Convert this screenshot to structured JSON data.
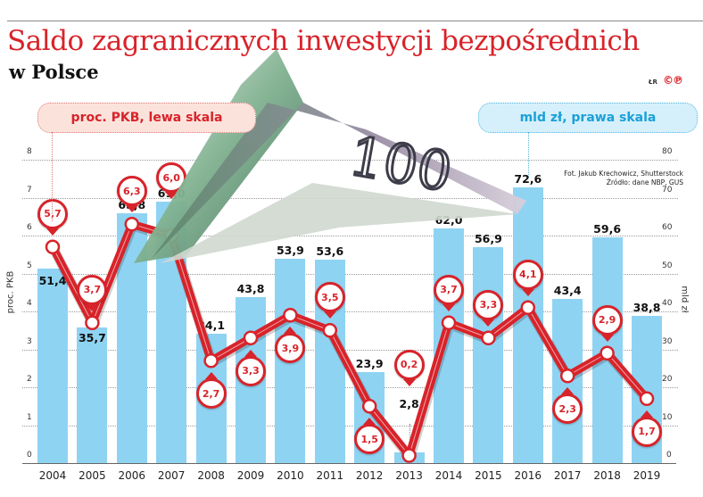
{
  "header": {
    "title": "Saldo zagranicznych inwestycji bezpośrednich",
    "subtitle": "w Polsce",
    "author_mark": "ŁR",
    "logo": "©℗"
  },
  "legend": {
    "left_pill": "proc. PKB, lewa skala",
    "right_pill": "mld zł, prawa skala"
  },
  "notes": {
    "photo": "Fot. Jakub Krechowicz, Shutterstock",
    "source": "Źródło: dane NBP, GUS"
  },
  "axes": {
    "left_title": "proc. PKB",
    "right_title": "mld zł",
    "left_ticks": [
      "0",
      "1",
      "2",
      "3",
      "4",
      "5",
      "6",
      "7",
      "8"
    ],
    "right_ticks": [
      "0",
      "10",
      "20",
      "30",
      "40",
      "50",
      "60",
      "70",
      "80"
    ]
  },
  "colors": {
    "bar": "#8fd3f2",
    "line": "#d8232a",
    "title": "#d8232a",
    "right_accent": "#1aa0d8"
  },
  "chart_data": {
    "type": "bar+line",
    "title": "Saldo zagranicznych inwestycji bezpośrednich w Polsce",
    "categories": [
      "2004",
      "2005",
      "2006",
      "2007",
      "2008",
      "2009",
      "2010",
      "2011",
      "2012",
      "2013",
      "2014",
      "2015",
      "2016",
      "2017",
      "2018",
      "2019"
    ],
    "series": [
      {
        "name": "mld zł, prawa skala",
        "type": "bar",
        "axis": "right",
        "values": [
          51.4,
          35.7,
          65.8,
          69.0,
          34.1,
          43.8,
          53.9,
          53.6,
          23.9,
          2.8,
          62.0,
          56.9,
          72.6,
          43.4,
          59.6,
          38.8
        ],
        "labels": [
          "51,4",
          "35,7",
          "65,8",
          "69,0",
          "34,1",
          "43,8",
          "53,9",
          "53,6",
          "23,9",
          "2,8",
          "62,0",
          "56,9",
          "72,6",
          "43,4",
          "59,6",
          "38,8"
        ]
      },
      {
        "name": "proc. PKB, lewa skala",
        "type": "line",
        "axis": "left",
        "values": [
          5.7,
          3.7,
          6.3,
          6.0,
          2.7,
          3.3,
          3.9,
          3.5,
          1.5,
          0.2,
          3.7,
          3.3,
          4.1,
          2.3,
          2.9,
          1.7
        ],
        "labels": [
          "5,7",
          "3,7",
          "6,3",
          "6,0",
          "2,7",
          "3,3",
          "3,9",
          "3,5",
          "1,5",
          "0,2",
          "3,7",
          "3,3",
          "4,1",
          "2,3",
          "2,9",
          "1,7"
        ]
      }
    ],
    "ylabel_left": "proc. PKB",
    "ylabel_right": "mld zł",
    "ylim_left": [
      0,
      8
    ],
    "ylim_right": [
      0,
      80
    ],
    "grid": true
  }
}
